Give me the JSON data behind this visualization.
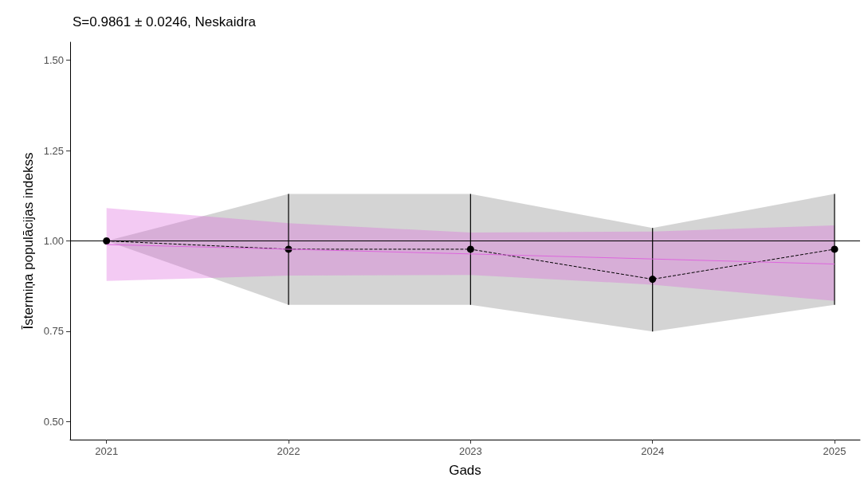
{
  "chart_data": {
    "type": "line",
    "title": "S=0.9861 ± 0.0246, Neskaidra",
    "xlabel": "Gads",
    "ylabel": "Īstermiņa populācijas indekss",
    "x": [
      2021,
      2022,
      2023,
      2024,
      2025
    ],
    "series": [
      {
        "color": "#000000",
        "values": [
          1.0,
          0.977,
          0.977,
          0.894,
          0.977
        ],
        "errors": [
          null,
          [
            0.823,
            1.13
          ],
          [
            0.823,
            1.13
          ],
          [
            0.749,
            1.036
          ],
          [
            0.823,
            1.13
          ]
        ],
        "lower": [
          1.0,
          0.823,
          0.823,
          0.749,
          0.823
        ],
        "upper": [
          1.0,
          1.13,
          1.13,
          1.036,
          1.13
        ],
        "line_style": "dashed",
        "marker": "circle"
      },
      {
        "color": "#dd66dd",
        "values": [
          0.99,
          0.977,
          0.964,
          0.95,
          0.936
        ],
        "lower": [
          0.889,
          0.904,
          0.906,
          0.879,
          0.834
        ],
        "upper": [
          1.091,
          1.049,
          1.023,
          1.026,
          1.043
        ],
        "line_style": "solid",
        "marker": "none"
      }
    ],
    "xlim": [
      2020.8,
      2025.14
    ],
    "xticks": [
      2021,
      2022,
      2023,
      2024,
      2025
    ],
    "ylim": [
      0.45,
      1.55
    ],
    "yticks": [
      {
        "value": 0.5,
        "label": "0.50"
      },
      {
        "value": 0.75,
        "label": "0.75"
      },
      {
        "value": 1.0,
        "label": "1.00"
      },
      {
        "value": 1.25,
        "label": "1.25"
      },
      {
        "value": 1.5,
        "label": "1.50"
      }
    ],
    "ref_lines": [
      {
        "axis": "y",
        "value": 1.0,
        "color": "#000000"
      }
    ],
    "grid": false
  }
}
